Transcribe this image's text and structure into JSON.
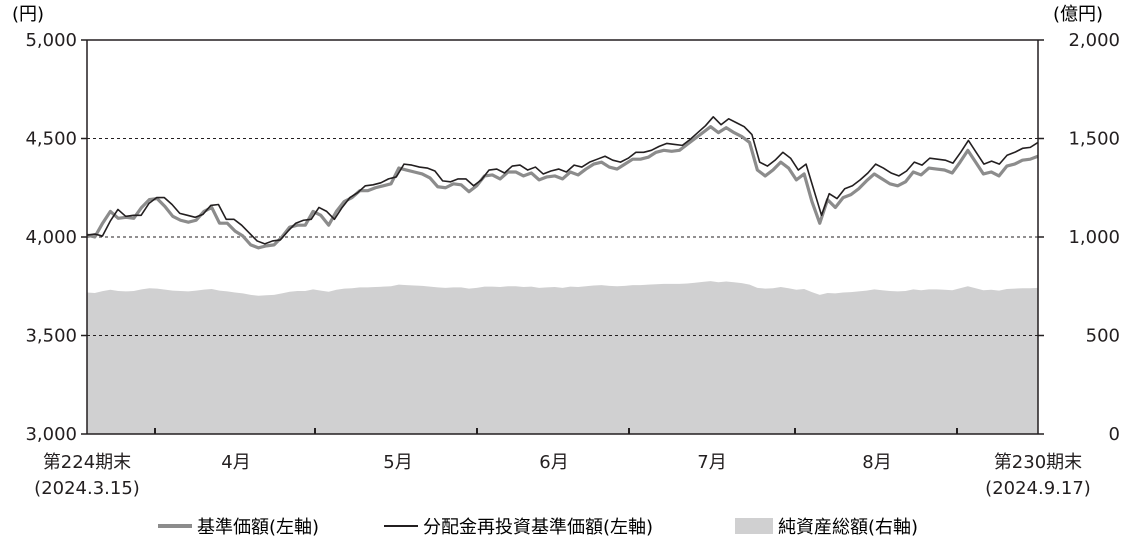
{
  "chart_data": {
    "type": "line",
    "left_axis": {
      "unit": "(円)",
      "ticks": [
        "5,000",
        "4,500",
        "4,000",
        "3,500",
        "3,000"
      ],
      "range": [
        3000,
        5000
      ]
    },
    "right_axis": {
      "unit": "(億円)",
      "ticks": [
        "2,000",
        "1,500",
        "1,000",
        "500",
        "0"
      ],
      "range": [
        0,
        2000
      ]
    },
    "x_labels": [
      {
        "line1": "第224期末",
        "line2": "(2024.3.15)"
      },
      {
        "line1": "4月",
        "line2": ""
      },
      {
        "line1": "5月",
        "line2": ""
      },
      {
        "line1": "6月",
        "line2": ""
      },
      {
        "line1": "7月",
        "line2": ""
      },
      {
        "line1": "8月",
        "line2": ""
      },
      {
        "line1": "第230期末",
        "line2": "(2024.9.17)"
      }
    ],
    "grid": "dashed horizontal at 3,500 / 4,000 / 4,500",
    "series": [
      {
        "name": "基準価額(左軸)",
        "axis": "left",
        "color": "#8c8c8c",
        "values": [
          4010,
          4000,
          4070,
          4130,
          4095,
          4100,
          4095,
          4150,
          4190,
          4195,
          4155,
          4105,
          4085,
          4075,
          4085,
          4130,
          4150,
          4070,
          4070,
          4030,
          4005,
          3960,
          3945,
          3955,
          3960,
          4000,
          4050,
          4060,
          4060,
          4130,
          4110,
          4060,
          4130,
          4180,
          4200,
          4235,
          4235,
          4250,
          4260,
          4270,
          4350,
          4340,
          4330,
          4320,
          4300,
          4255,
          4250,
          4270,
          4265,
          4230,
          4260,
          4310,
          4315,
          4295,
          4330,
          4330,
          4310,
          4325,
          4290,
          4305,
          4310,
          4295,
          4330,
          4315,
          4345,
          4370,
          4380,
          4355,
          4345,
          4370,
          4395,
          4395,
          4405,
          4430,
          4440,
          4435,
          4440,
          4470,
          4500,
          4530,
          4560,
          4530,
          4555,
          4530,
          4510,
          4480,
          4340,
          4310,
          4340,
          4380,
          4350,
          4290,
          4320,
          4180,
          4070,
          4190,
          4150,
          4200,
          4215,
          4245,
          4285,
          4320,
          4295,
          4270,
          4260,
          4280,
          4330,
          4315,
          4350,
          4345,
          4340,
          4325,
          4380,
          4440,
          4380,
          4320,
          4330,
          4310,
          4360,
          4370,
          4390,
          4395,
          4410
        ]
      },
      {
        "name": "分配金再投資基準価額(左軸)",
        "axis": "left",
        "color": "#231f20",
        "values": [
          4010,
          4015,
          4005,
          4080,
          4140,
          4105,
          4110,
          4110,
          4170,
          4200,
          4200,
          4165,
          4120,
          4110,
          4100,
          4115,
          4160,
          4165,
          4090,
          4090,
          4060,
          4020,
          3980,
          3965,
          3980,
          3985,
          4030,
          4070,
          4085,
          4090,
          4150,
          4130,
          4090,
          4150,
          4200,
          4225,
          4260,
          4265,
          4275,
          4295,
          4305,
          4370,
          4365,
          4355,
          4350,
          4335,
          4285,
          4280,
          4295,
          4295,
          4260,
          4290,
          4340,
          4345,
          4325,
          4360,
          4365,
          4340,
          4355,
          4320,
          4335,
          4345,
          4330,
          4365,
          4355,
          4380,
          4395,
          4410,
          4390,
          4380,
          4400,
          4430,
          4430,
          4440,
          4460,
          4475,
          4470,
          4465,
          4495,
          4530,
          4565,
          4610,
          4570,
          4600,
          4580,
          4560,
          4520,
          4380,
          4360,
          4390,
          4430,
          4400,
          4340,
          4370,
          4240,
          4110,
          4220,
          4195,
          4245,
          4260,
          4290,
          4325,
          4370,
          4350,
          4325,
          4310,
          4335,
          4380,
          4365,
          4400,
          4395,
          4390,
          4375,
          4430,
          4490,
          4430,
          4370,
          4385,
          4370,
          4415,
          4430,
          4450,
          4455,
          4480
        ]
      },
      {
        "name": "純資産総額(右軸)",
        "axis": "right",
        "color": "#d0d0d1",
        "type": "area",
        "values": [
          718,
          716,
          725,
          732,
          726,
          724,
          726,
          734,
          740,
          738,
          733,
          728,
          726,
          724,
          728,
          733,
          736,
          728,
          724,
          718,
          714,
          706,
          702,
          704,
          706,
          714,
          722,
          726,
          726,
          734,
          728,
          722,
          732,
          738,
          740,
          744,
          744,
          746,
          748,
          750,
          758,
          756,
          754,
          752,
          748,
          744,
          742,
          744,
          744,
          738,
          742,
          748,
          748,
          746,
          750,
          750,
          746,
          748,
          742,
          744,
          746,
          742,
          748,
          746,
          750,
          754,
          756,
          752,
          750,
          752,
          756,
          756,
          758,
          760,
          762,
          762,
          762,
          764,
          768,
          772,
          776,
          770,
          774,
          770,
          766,
          758,
          742,
          738,
          740,
          746,
          740,
          732,
          736,
          720,
          706,
          716,
          714,
          718,
          720,
          724,
          728,
          734,
          730,
          726,
          724,
          726,
          734,
          730,
          734,
          734,
          732,
          730,
          740,
          750,
          740,
          730,
          732,
          728,
          736,
          738,
          740,
          740,
          742
        ]
      }
    ]
  }
}
